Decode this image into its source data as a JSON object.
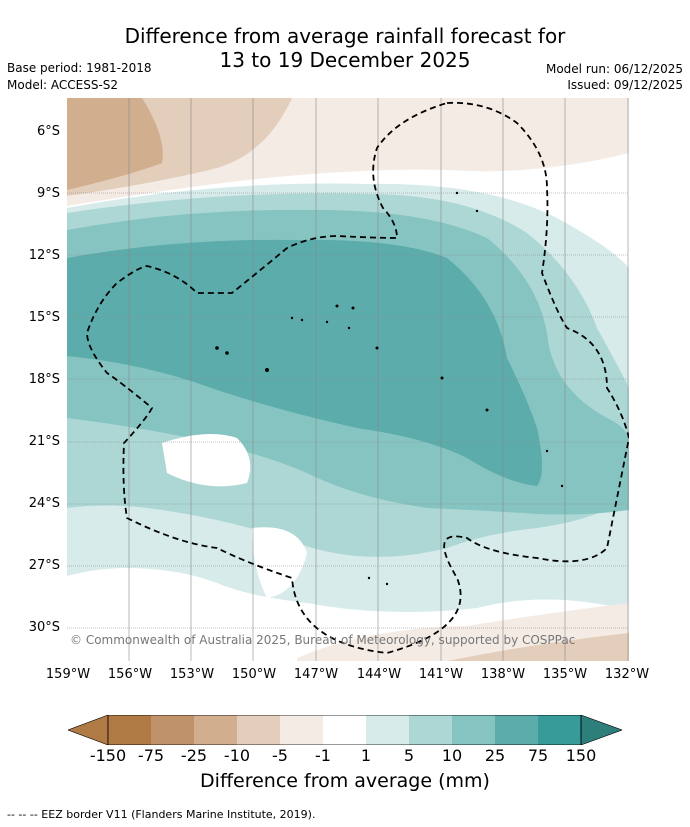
{
  "title": {
    "line1": "Difference from average rainfall forecast for",
    "line2": "13 to 19 December 2025"
  },
  "meta": {
    "base_period": "Base period: 1981-2018",
    "model": "Model: ACCESS-S2",
    "model_run": "Model run: 06/12/2025",
    "issued": "Issued: 09/12/2025"
  },
  "map": {
    "latitude_labels": [
      "6°S",
      "9°S",
      "12°S",
      "15°S",
      "18°S",
      "21°S",
      "24°S",
      "27°S",
      "30°S"
    ],
    "longitude_labels": [
      "159°W",
      "156°W",
      "153°W",
      "150°W",
      "147°W",
      "144°W",
      "141°W",
      "138°W",
      "135°W",
      "132°W"
    ],
    "copyright": "© Commonwealth of Australia 2025, Bureau of Meteorology, supported by COSPPac",
    "colors": {
      "dry_150": "#b07a45",
      "dry_75": "#c0926a",
      "dry_25": "#d0ae8e",
      "dry_10": "#e3cdbb",
      "dry_5": "#f4ebe5",
      "neutral": "#ffffff",
      "wet_1": "#d6ebea",
      "wet_5": "#acd7d5",
      "wet_10": "#86c4c1",
      "wet_25": "#5bacab",
      "wet_75": "#369b99",
      "wet_150": "#2e7f7c"
    }
  },
  "colorbar": {
    "ticks": [
      "-150",
      "-75",
      "-25",
      "-10",
      "-5",
      "-1",
      "1",
      "5",
      "10",
      "25",
      "75",
      "150"
    ],
    "label": "Difference from average (mm)"
  },
  "legend": {
    "eez_note": "-- -- -- EEZ border V11 (Flanders Marine Institute, 2019)."
  }
}
